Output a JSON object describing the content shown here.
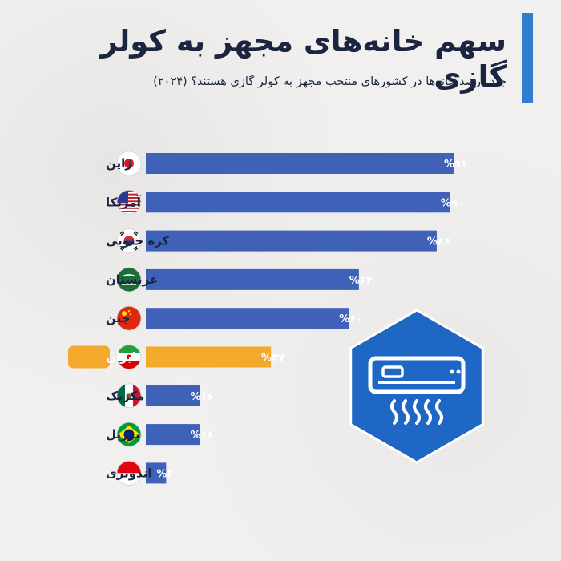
{
  "title": "سهم خانه‌های مجهز به کولر گازی",
  "subtitle": "چند درصد خانه‌ها در کشورهای منتخب مجهز به کولر گازی هستند؟ (۲۰۲۴)",
  "colors": {
    "bar": "#3f62b8",
    "highlight": "#f2a92c",
    "accent": "#2e7fd0",
    "hexagon": "#1e67c4",
    "text": "#1b2540"
  },
  "icons": [
    "air-conditioner-icon",
    "flag-icons"
  ],
  "chart_data": {
    "type": "bar",
    "orientation": "horizontal",
    "categories": [
      "ژاپن",
      "آمریکا",
      "کره جنوبی",
      "عربستان",
      "چین",
      "ایران",
      "مکزیک",
      "برزیل",
      "اندونزی"
    ],
    "values": [
      91,
      90,
      86,
      63,
      60,
      37,
      16,
      16,
      6
    ],
    "value_labels": [
      "%۹۱",
      "%۹۰",
      "%۸۶",
      "%۶۳",
      "%۶۰",
      "%۳۷",
      "%۱۶",
      "%۱۶",
      "%۶"
    ],
    "highlight_category": "ایران",
    "xlim": [
      0,
      100
    ],
    "grid": false,
    "xlabel": "",
    "ylabel": ""
  }
}
